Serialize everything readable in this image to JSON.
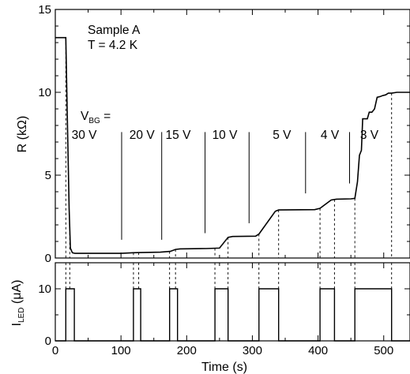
{
  "chart_data": [
    {
      "type": "line",
      "panel": "top",
      "ylabel": "R (kΩ)",
      "ylabel_parts": {
        "main": "R (k",
        "unit_symbol": "Ω",
        "close": ")"
      },
      "xlim": [
        0,
        540
      ],
      "ylim": [
        0,
        15
      ],
      "yticks": [
        0,
        5,
        10,
        15
      ],
      "annotations": {
        "sample": "Sample A",
        "temperature": "T = 4.2 K",
        "vbg_main": "V",
        "vbg_sub": "BG",
        "vbg_eq": " =",
        "voltages": [
          {
            "label": "30 V",
            "t": 44
          },
          {
            "label": "20 V",
            "t": 132
          },
          {
            "label": "15 V",
            "t": 187
          },
          {
            "label": "10 V",
            "t": 258
          },
          {
            "label": "5 V",
            "t": 345
          },
          {
            "label": "4 V",
            "t": 418
          },
          {
            "label": "3 V",
            "t": 478
          }
        ],
        "markers": [
          {
            "t": 101,
            "r_top": 7.6,
            "r_bottom": 1.1
          },
          {
            "t": 162,
            "r_top": 7.6,
            "r_bottom": 1.1
          },
          {
            "t": 228,
            "r_top": 7.6,
            "r_bottom": 1.5
          },
          {
            "t": 295,
            "r_top": 7.6,
            "r_bottom": 2.1
          },
          {
            "t": 381,
            "r_top": 7.6,
            "r_bottom": 3.9
          },
          {
            "t": 448,
            "r_top": 7.6,
            "r_bottom": 4.5
          }
        ]
      },
      "series": [
        {
          "x": [
            0,
            16,
            18,
            21,
            23,
            26,
            30,
            50,
            100,
            110,
            119,
            130,
            160,
            175,
            183,
            190,
            230,
            250,
            263,
            270,
            305,
            310,
            335,
            340,
            395,
            403,
            420,
            428,
            450,
            456,
            460,
            463,
            466,
            468,
            475,
            478,
            482,
            486,
            490,
            495,
            498,
            503,
            507,
            512,
            520,
            540
          ],
          "y": [
            13.3,
            13.3,
            9.0,
            3.0,
            0.6,
            0.32,
            0.28,
            0.28,
            0.28,
            0.3,
            0.32,
            0.33,
            0.35,
            0.4,
            0.52,
            0.55,
            0.57,
            0.6,
            1.25,
            1.3,
            1.32,
            1.45,
            2.82,
            2.9,
            2.92,
            3.0,
            3.5,
            3.55,
            3.57,
            3.6,
            4.6,
            6.2,
            6.5,
            8.4,
            8.4,
            8.8,
            8.8,
            9.0,
            9.7,
            9.75,
            9.8,
            9.85,
            9.95,
            9.95,
            10.0,
            10.0
          ]
        }
      ],
      "dashed_guides_t": [
        16,
        22,
        119,
        127,
        174,
        183,
        243,
        263,
        310,
        340,
        403,
        425,
        456,
        512
      ]
    },
    {
      "type": "line",
      "panel": "bottom",
      "ylabel_parts": {
        "main": "I",
        "sub": "LED",
        "unit_open": " (",
        "unit_symbol": "μ",
        "unit_close": "A)"
      },
      "xlabel": "Time (s)",
      "xlim": [
        0,
        540
      ],
      "xticks": [
        0,
        100,
        200,
        300,
        400,
        500
      ],
      "ylim": [
        0,
        15
      ],
      "yticks": [
        0,
        10
      ],
      "series": [
        {
          "pulses": [
            [
              16,
              29
            ],
            [
              119,
              130
            ],
            [
              174,
              186
            ],
            [
              243,
              263
            ],
            [
              310,
              340
            ],
            [
              403,
              425
            ],
            [
              456,
              512
            ]
          ],
          "on_value": 10,
          "off_value": 0
        }
      ]
    }
  ]
}
